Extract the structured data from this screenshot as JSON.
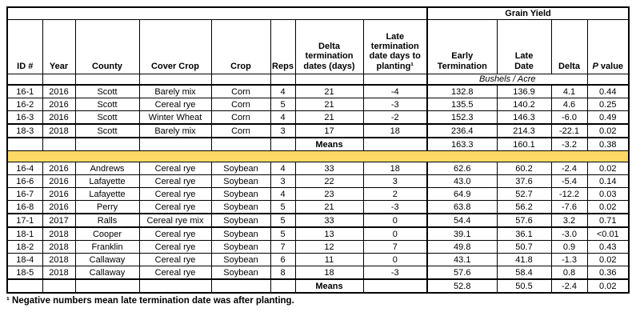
{
  "table": {
    "grain_yield_header": "Grain Yield",
    "units_label": "Bushels / Acre",
    "columns": [
      {
        "label": "ID #"
      },
      {
        "label": "Year"
      },
      {
        "label": "County"
      },
      {
        "label": "Cover Crop"
      },
      {
        "label": "Crop"
      },
      {
        "label": "Reps"
      },
      {
        "label": "Delta\ntermination\ndates (days)"
      },
      {
        "label": "Late\ntermination\ndate days to\nplanting¹"
      },
      {
        "label": "Early\nTermination"
      },
      {
        "label": "Late\nDate"
      },
      {
        "label": "Delta"
      },
      {
        "label_italic": "P",
        "label_rest": " value"
      }
    ],
    "sections": [
      {
        "name": "corn",
        "rows": [
          {
            "id": "16-1",
            "year": "2016",
            "county": "Scott",
            "cover_crop": "Barely mix",
            "crop": "Corn",
            "reps": "4",
            "delta_term_days": "21",
            "late_term_days_to_planting": "-4",
            "early_termination": "132.8",
            "late_date": "136.9",
            "delta": "4.1",
            "p_value": "0.44"
          },
          {
            "id": "16-2",
            "year": "2016",
            "county": "Scott",
            "cover_crop": "Cereal rye",
            "crop": "Corn",
            "reps": "5",
            "delta_term_days": "21",
            "late_term_days_to_planting": "-3",
            "early_termination": "135.5",
            "late_date": "140.2",
            "delta": "4.6",
            "p_value": "0.25"
          },
          {
            "id": "16-3",
            "year": "2016",
            "county": "Scott",
            "cover_crop": "Winter Wheat",
            "crop": "Corn",
            "reps": "4",
            "delta_term_days": "21",
            "late_term_days_to_planting": "-2",
            "early_termination": "152.3",
            "late_date": "146.3",
            "delta": "-6.0",
            "p_value": "0.49"
          },
          {
            "id": "18-3",
            "year": "2018",
            "county": "Scott",
            "cover_crop": "Barely mix",
            "crop": "Corn",
            "reps": "3",
            "delta_term_days": "17",
            "late_term_days_to_planting": "18",
            "early_termination": "236.4",
            "late_date": "214.3",
            "delta": "-22.1",
            "p_value": "0.02",
            "group_start": true
          }
        ],
        "means": {
          "label": "Means",
          "early_termination": "163.3",
          "late_date": "160.1",
          "delta": "-3.2",
          "p_value": "0.38"
        }
      },
      {
        "name": "soybean",
        "rows": [
          {
            "id": "16-4",
            "year": "2016",
            "county": "Andrews",
            "cover_crop": "Cereal rye",
            "crop": "Soybean",
            "reps": "4",
            "delta_term_days": "33",
            "late_term_days_to_planting": "18",
            "early_termination": "62.6",
            "late_date": "60.2",
            "delta": "-2.4",
            "p_value": "0.02"
          },
          {
            "id": "16-6",
            "year": "2016",
            "county": "Lafayette",
            "cover_crop": "Cereal rye",
            "crop": "Soybean",
            "reps": "3",
            "delta_term_days": "22",
            "late_term_days_to_planting": "3",
            "early_termination": "43.0",
            "late_date": "37.6",
            "delta": "-5.4",
            "p_value": "0.14"
          },
          {
            "id": "16-7",
            "year": "2016",
            "county": "Lafayette",
            "cover_crop": "Cereal rye",
            "crop": "Soybean",
            "reps": "4",
            "delta_term_days": "23",
            "late_term_days_to_planting": "2",
            "early_termination": "64.9",
            "late_date": "52.7",
            "delta": "-12.2",
            "p_value": "0.03"
          },
          {
            "id": "16-8",
            "year": "2016",
            "county": "Perry",
            "cover_crop": "Cereal rye",
            "crop": "Soybean",
            "reps": "5",
            "delta_term_days": "21",
            "late_term_days_to_planting": "-3",
            "early_termination": "63.8",
            "late_date": "56.2",
            "delta": "-7.6",
            "p_value": "0.02"
          },
          {
            "id": "17-1",
            "year": "2017",
            "county": "Ralls",
            "cover_crop": "Cereal rye mix",
            "crop": "Soybean",
            "reps": "5",
            "delta_term_days": "33",
            "late_term_days_to_planting": "0",
            "early_termination": "54.4",
            "late_date": "57.6",
            "delta": "3.2",
            "p_value": "0.71",
            "group_start": true
          },
          {
            "id": "18-1",
            "year": "2018",
            "county": "Cooper",
            "cover_crop": "Cereal rye",
            "crop": "Soybean",
            "reps": "5",
            "delta_term_days": "13",
            "late_term_days_to_planting": "0",
            "early_termination": "39.1",
            "late_date": "36.1",
            "delta": "-3.0",
            "p_value": "<0.01",
            "group_start": true
          },
          {
            "id": "18-2",
            "year": "2018",
            "county": "Franklin",
            "cover_crop": "Cereal rye",
            "crop": "Soybean",
            "reps": "7",
            "delta_term_days": "12",
            "late_term_days_to_planting": "7",
            "early_termination": "49.8",
            "late_date": "50.7",
            "delta": "0.9",
            "p_value": "0.43"
          },
          {
            "id": "18-4",
            "year": "2018",
            "county": "Callaway",
            "cover_crop": "Cereal rye",
            "crop": "Soybean",
            "reps": "6",
            "delta_term_days": "11",
            "late_term_days_to_planting": "0",
            "early_termination": "43.1",
            "late_date": "41.8",
            "delta": "-1.3",
            "p_value": "0.02"
          },
          {
            "id": "18-5",
            "year": "2018",
            "county": "Callaway",
            "cover_crop": "Cereal rye",
            "crop": "Soybean",
            "reps": "8",
            "delta_term_days": "18",
            "late_term_days_to_planting": "-3",
            "early_termination": "57.6",
            "late_date": "58.4",
            "delta": "0.8",
            "p_value": "0.36"
          }
        ],
        "means": {
          "label": "Means",
          "early_termination": "52.8",
          "late_date": "50.5",
          "delta": "-2.4",
          "p_value": "0.02"
        }
      }
    ]
  },
  "footnote": "¹ Negative numbers mean late termination date was after planting.",
  "colors": {
    "separator_band": "#FFD966",
    "border": "#000000",
    "background": "#FFFFFF"
  }
}
